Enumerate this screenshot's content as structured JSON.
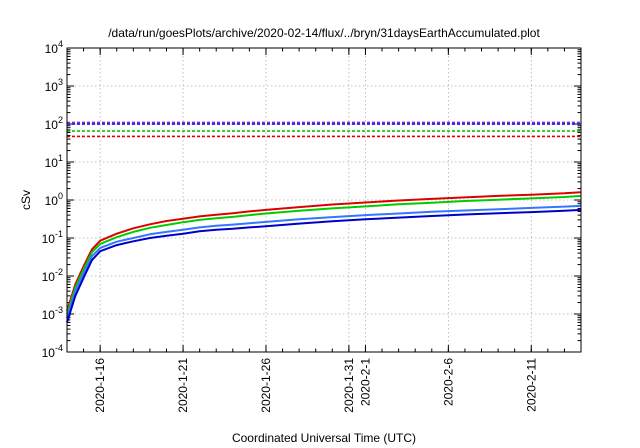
{
  "chart_data": {
    "type": "line",
    "title": "/data/run/goesPlots/archive/2020-02-14/flux/../bryn/31daysEarthAccumulated.plot",
    "xlabel": "Coordinated Universal Time (UTC)",
    "ylabel": "cSv",
    "yscale": "log",
    "ylim": [
      0.0001,
      10000
    ],
    "xlim": [
      "2020-01-14",
      "2020-02-14"
    ],
    "grid": true,
    "legend": "none",
    "yticks": [
      {
        "mantissa": "10",
        "exp": "-4"
      },
      {
        "mantissa": "10",
        "exp": "-3"
      },
      {
        "mantissa": "10",
        "exp": "-2"
      },
      {
        "mantissa": "10",
        "exp": "-1"
      },
      {
        "mantissa": "10",
        "exp": "0"
      },
      {
        "mantissa": "10",
        "exp": "1"
      },
      {
        "mantissa": "10",
        "exp": "2"
      },
      {
        "mantissa": "10",
        "exp": "3"
      },
      {
        "mantissa": "10",
        "exp": "4"
      }
    ],
    "xticks": [
      {
        "date": "2020-01-16",
        "label": "2020-1-16"
      },
      {
        "date": "2020-01-21",
        "label": "2020-1-21"
      },
      {
        "date": "2020-01-26",
        "label": "2020-1-26"
      },
      {
        "date": "2020-01-31",
        "label": "2020-1-31"
      },
      {
        "date": "2020-02-01",
        "label": "2020-2-1"
      },
      {
        "date": "2020-02-06",
        "label": "2020-2-6"
      },
      {
        "date": "2020-02-11",
        "label": "2020-2-11"
      }
    ],
    "thresholds": [
      {
        "value": 110,
        "color": "#8b2be2"
      },
      {
        "value": 100,
        "color": "#0000cc"
      },
      {
        "value": 65,
        "color": "#00cc00"
      },
      {
        "value": 47,
        "color": "#dd0000"
      }
    ],
    "series": [
      {
        "color": "#dd0000",
        "x": [
          "2020-01-14",
          "2020-01-14T12:00",
          "2020-01-15",
          "2020-01-15T12:00",
          "2020-01-16",
          "2020-01-17",
          "2020-01-18",
          "2020-01-19",
          "2020-01-20",
          "2020-01-21",
          "2020-01-22",
          "2020-01-23",
          "2020-01-24",
          "2020-01-25",
          "2020-01-26",
          "2020-01-28",
          "2020-01-30",
          "2020-02-01",
          "2020-02-03",
          "2020-02-05",
          "2020-02-07",
          "2020-02-09",
          "2020-02-11",
          "2020-02-13",
          "2020-02-14"
        ],
        "y": [
          0.0012,
          0.006,
          0.018,
          0.05,
          0.085,
          0.13,
          0.18,
          0.23,
          0.28,
          0.32,
          0.37,
          0.41,
          0.45,
          0.5,
          0.55,
          0.65,
          0.76,
          0.86,
          0.97,
          1.07,
          1.17,
          1.28,
          1.38,
          1.5,
          1.6
        ]
      },
      {
        "color": "#00cc00",
        "x": [
          "2020-01-14",
          "2020-01-14T12:00",
          "2020-01-15",
          "2020-01-15T12:00",
          "2020-01-16",
          "2020-01-17",
          "2020-01-18",
          "2020-01-19",
          "2020-01-20",
          "2020-01-21",
          "2020-01-22",
          "2020-01-23",
          "2020-01-24",
          "2020-01-25",
          "2020-01-26",
          "2020-01-28",
          "2020-01-30",
          "2020-02-01",
          "2020-02-03",
          "2020-02-05",
          "2020-02-07",
          "2020-02-09",
          "2020-02-11",
          "2020-02-13",
          "2020-02-14"
        ],
        "y": [
          0.001,
          0.005,
          0.015,
          0.042,
          0.07,
          0.105,
          0.145,
          0.185,
          0.22,
          0.26,
          0.3,
          0.33,
          0.36,
          0.4,
          0.44,
          0.52,
          0.6,
          0.68,
          0.77,
          0.85,
          0.94,
          1.02,
          1.1,
          1.2,
          1.28
        ]
      },
      {
        "color": "#3377ff",
        "x": [
          "2020-01-14",
          "2020-01-14T12:00",
          "2020-01-15",
          "2020-01-15T12:00",
          "2020-01-16",
          "2020-01-17",
          "2020-01-18",
          "2020-01-19",
          "2020-01-20",
          "2020-01-21",
          "2020-01-22",
          "2020-01-23",
          "2020-01-24",
          "2020-01-25",
          "2020-01-26",
          "2020-01-28",
          "2020-01-30",
          "2020-02-01",
          "2020-02-03",
          "2020-02-05",
          "2020-02-07",
          "2020-02-09",
          "2020-02-11",
          "2020-02-13",
          "2020-02-14"
        ],
        "y": [
          0.0008,
          0.004,
          0.012,
          0.033,
          0.055,
          0.08,
          0.1,
          0.125,
          0.145,
          0.165,
          0.19,
          0.21,
          0.225,
          0.245,
          0.265,
          0.31,
          0.355,
          0.4,
          0.44,
          0.49,
          0.53,
          0.57,
          0.62,
          0.67,
          0.7
        ]
      },
      {
        "color": "#0000cc",
        "x": [
          "2020-01-14",
          "2020-01-14T12:00",
          "2020-01-15",
          "2020-01-15T12:00",
          "2020-01-16",
          "2020-01-17",
          "2020-01-18",
          "2020-01-19",
          "2020-01-20",
          "2020-01-21",
          "2020-01-22",
          "2020-01-23",
          "2020-01-24",
          "2020-01-25",
          "2020-01-26",
          "2020-01-28",
          "2020-01-30",
          "2020-02-01",
          "2020-02-03",
          "2020-02-05",
          "2020-02-07",
          "2020-02-09",
          "2020-02-11",
          "2020-02-13",
          "2020-02-14"
        ],
        "y": [
          0.0006,
          0.003,
          0.009,
          0.026,
          0.045,
          0.065,
          0.082,
          0.1,
          0.115,
          0.13,
          0.15,
          0.165,
          0.175,
          0.19,
          0.205,
          0.24,
          0.275,
          0.31,
          0.345,
          0.38,
          0.415,
          0.45,
          0.48,
          0.52,
          0.55
        ]
      }
    ]
  }
}
